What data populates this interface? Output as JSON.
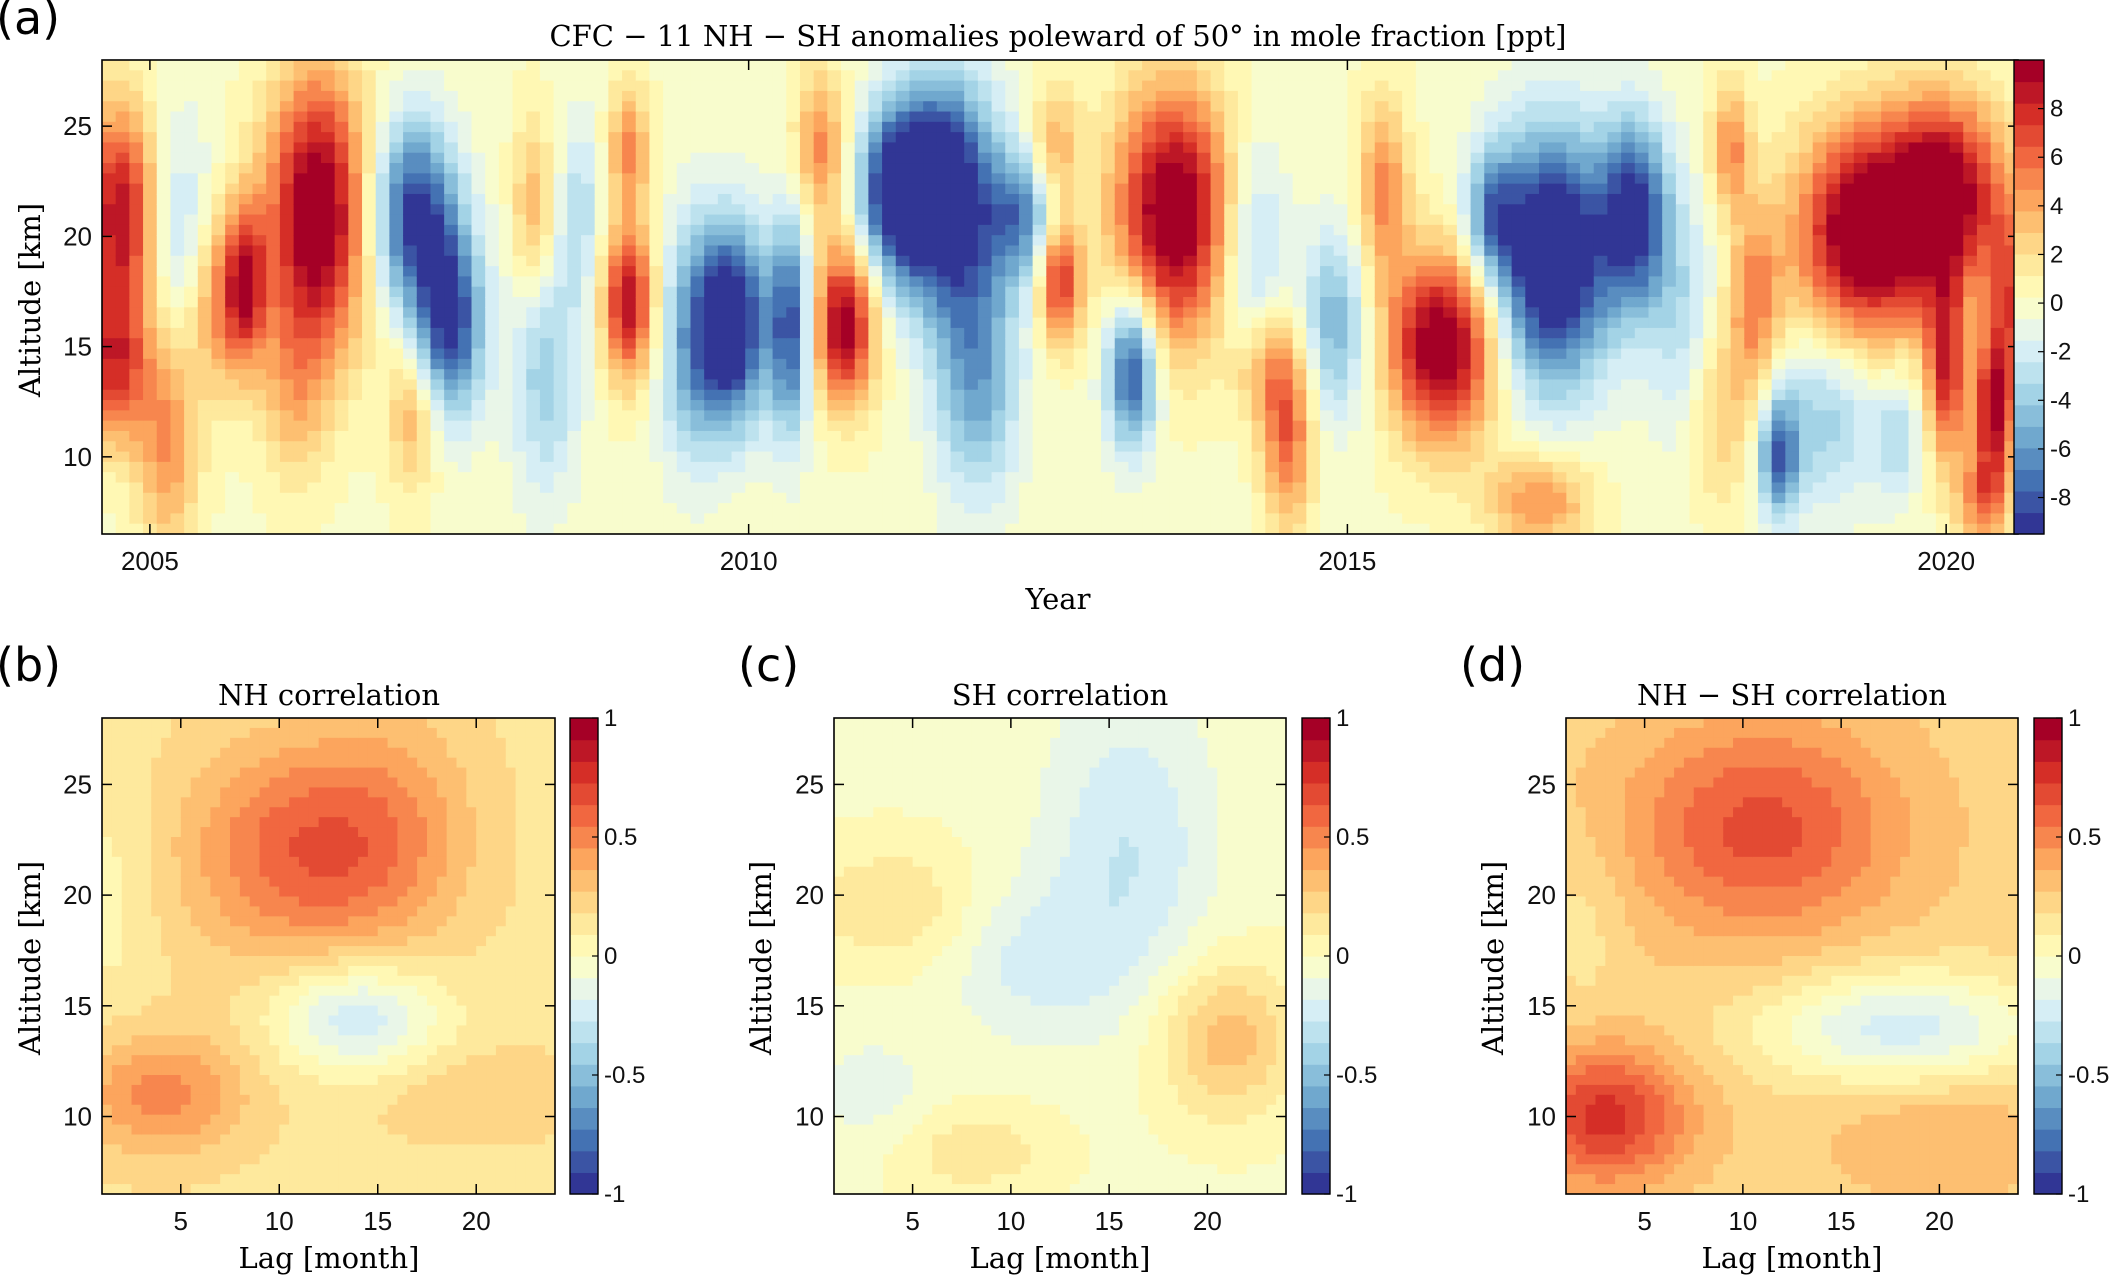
{
  "panel_letters": [
    "(a)",
    "(b)",
    "(c)",
    "(d)"
  ],
  "chart_data": [
    {
      "id": "a",
      "type": "heatmap",
      "title": "CFC − 11 NH − SH anomalies poleward of 50° in mole fraction [ppt]",
      "xlabel": "Year",
      "ylabel": "Altitude [km]",
      "xlim": [
        2004.6,
        2020.6
      ],
      "ylim": [
        6.5,
        28
      ],
      "xticks": [
        2005,
        2010,
        2015,
        2020
      ],
      "xtick_labels": [
        "2005",
        "2010",
        "2015",
        "2020"
      ],
      "yticks": [
        10,
        15,
        20,
        25
      ],
      "ytick_labels": [
        "10",
        "15",
        "20",
        "25"
      ],
      "colorbar": {
        "min": -9.5,
        "max": 10,
        "ticks": [
          -8,
          -6,
          -4,
          -2,
          0,
          2,
          4,
          6,
          8
        ],
        "tick_labels": [
          "-8",
          "-6",
          "-4",
          "-2",
          "0",
          "2",
          "4",
          "6",
          "8"
        ]
      },
      "blobs": [
        {
          "x": 2004.75,
          "y": 21,
          "amp": 9,
          "sx": 0.22,
          "sy": 3.5
        },
        {
          "x": 2004.7,
          "y": 14,
          "amp": 7,
          "sx": 0.2,
          "sy": 2.5
        },
        {
          "x": 2005.15,
          "y": 11,
          "amp": 5,
          "sx": 0.18,
          "sy": 4
        },
        {
          "x": 2005.25,
          "y": 19,
          "amp": -4,
          "sx": 0.2,
          "sy": 4
        },
        {
          "x": 2005.55,
          "y": 17,
          "amp": 5,
          "sx": 0.2,
          "sy": 3
        },
        {
          "x": 2005.8,
          "y": 18,
          "amp": 7,
          "sx": 0.12,
          "sy": 2.5
        },
        {
          "x": 2006.4,
          "y": 21,
          "amp": 11,
          "sx": 0.3,
          "sy": 4.5
        },
        {
          "x": 2006.2,
          "y": 13,
          "amp": 3,
          "sx": 0.2,
          "sy": 3
        },
        {
          "x": 2007.2,
          "y": 21,
          "amp": -9,
          "sx": 0.25,
          "sy": 3
        },
        {
          "x": 2007.5,
          "y": 16,
          "amp": -9,
          "sx": 0.2,
          "sy": 3
        },
        {
          "x": 2007.2,
          "y": 12,
          "amp": 4,
          "sx": 0.15,
          "sy": 2.5
        },
        {
          "x": 2008.2,
          "y": 21,
          "amp": 4,
          "sx": 0.12,
          "sy": 3
        },
        {
          "x": 2008.3,
          "y": 14,
          "amp": -4,
          "sx": 0.2,
          "sy": 4
        },
        {
          "x": 2008.6,
          "y": 21,
          "amp": -3,
          "sx": 0.12,
          "sy": 3
        },
        {
          "x": 2009.0,
          "y": 17,
          "amp": 9,
          "sx": 0.15,
          "sy": 2.5
        },
        {
          "x": 2009.0,
          "y": 24,
          "amp": 5,
          "sx": 0.12,
          "sy": 2
        },
        {
          "x": 2009.5,
          "y": 15,
          "amp": -4,
          "sx": 0.2,
          "sy": 4
        },
        {
          "x": 2009.85,
          "y": 16,
          "amp": -11,
          "sx": 0.22,
          "sy": 3.2
        },
        {
          "x": 2010.35,
          "y": 16,
          "amp": -8,
          "sx": 0.12,
          "sy": 3.5
        },
        {
          "x": 2010.8,
          "y": 16,
          "amp": 10,
          "sx": 0.18,
          "sy": 2.5
        },
        {
          "x": 2010.6,
          "y": 24,
          "amp": 5,
          "sx": 0.15,
          "sy": 2.5
        },
        {
          "x": 2011.2,
          "y": 22,
          "amp": -7,
          "sx": 0.2,
          "sy": 2.5
        },
        {
          "x": 2011.6,
          "y": 22,
          "amp": -12,
          "sx": 0.32,
          "sy": 3.5
        },
        {
          "x": 2011.9,
          "y": 14,
          "amp": -6,
          "sx": 0.25,
          "sy": 4
        },
        {
          "x": 2012.3,
          "y": 21,
          "amp": -6,
          "sx": 0.2,
          "sy": 2
        },
        {
          "x": 2012.6,
          "y": 18,
          "amp": 8,
          "sx": 0.12,
          "sy": 2
        },
        {
          "x": 2012.55,
          "y": 24,
          "amp": 4,
          "sx": 0.15,
          "sy": 2
        },
        {
          "x": 2013.2,
          "y": 14,
          "amp": -9,
          "sx": 0.15,
          "sy": 2.5
        },
        {
          "x": 2013.55,
          "y": 21,
          "amp": 11,
          "sx": 0.35,
          "sy": 4
        },
        {
          "x": 2014.2,
          "y": 19,
          "amp": -4,
          "sx": 0.2,
          "sy": 4
        },
        {
          "x": 2014.5,
          "y": 11,
          "amp": 6,
          "sx": 0.15,
          "sy": 3
        },
        {
          "x": 2014.3,
          "y": 14,
          "amp": 4,
          "sx": 0.2,
          "sy": 2
        },
        {
          "x": 2014.9,
          "y": 16,
          "amp": -5,
          "sx": 0.2,
          "sy": 3
        },
        {
          "x": 2015.3,
          "y": 22,
          "amp": 5,
          "sx": 0.15,
          "sy": 3
        },
        {
          "x": 2015.8,
          "y": 15,
          "amp": 11,
          "sx": 0.32,
          "sy": 3
        },
        {
          "x": 2016.2,
          "y": 21,
          "amp": -5,
          "sx": 0.15,
          "sy": 2
        },
        {
          "x": 2016.7,
          "y": 19,
          "amp": -12,
          "sx": 0.35,
          "sy": 4
        },
        {
          "x": 2016.6,
          "y": 8,
          "amp": 5,
          "sx": 0.3,
          "sy": 1.5
        },
        {
          "x": 2017.4,
          "y": 21,
          "amp": -9,
          "sx": 0.2,
          "sy": 3
        },
        {
          "x": 2017.8,
          "y": 16,
          "amp": -3,
          "sx": 0.2,
          "sy": 4
        },
        {
          "x": 2018.1,
          "y": 12,
          "amp": 3,
          "sx": 0.2,
          "sy": 3
        },
        {
          "x": 2018.4,
          "y": 17,
          "amp": 5,
          "sx": 0.15,
          "sy": 3
        },
        {
          "x": 2018.6,
          "y": 10,
          "amp": -7,
          "sx": 0.12,
          "sy": 2
        },
        {
          "x": 2018.2,
          "y": 24,
          "amp": 5,
          "sx": 0.12,
          "sy": 2
        },
        {
          "x": 2019.0,
          "y": 12,
          "amp": -4,
          "sx": 0.3,
          "sy": 3
        },
        {
          "x": 2019.3,
          "y": 20,
          "amp": 11,
          "sx": 0.4,
          "sy": 3.5
        },
        {
          "x": 2020.0,
          "y": 22,
          "amp": 10,
          "sx": 0.35,
          "sy": 3
        },
        {
          "x": 2020.0,
          "y": 14,
          "amp": 8,
          "sx": 0.12,
          "sy": 3
        },
        {
          "x": 2020.4,
          "y": 12,
          "amp": 9,
          "sx": 0.12,
          "sy": 2.5
        },
        {
          "x": 2020.55,
          "y": 17,
          "amp": 6,
          "sx": 0.15,
          "sy": 3
        },
        {
          "x": 2019.6,
          "y": 11,
          "amp": -3,
          "sx": 0.15,
          "sy": 2
        },
        {
          "x": 2020.3,
          "y": 8,
          "amp": 5,
          "sx": 0.15,
          "sy": 1.5
        }
      ]
    },
    {
      "id": "b",
      "type": "heatmap",
      "title": "NH correlation",
      "xlabel": "Lag [month]",
      "ylabel": "Altitude [km]",
      "xlim": [
        1,
        24
      ],
      "ylim": [
        6.5,
        28
      ],
      "xticks": [
        5,
        10,
        15,
        20
      ],
      "xtick_labels": [
        "5",
        "10",
        "15",
        "20"
      ],
      "yticks": [
        10,
        15,
        20,
        25
      ],
      "ytick_labels": [
        "10",
        "15",
        "20",
        "25"
      ],
      "colorbar": {
        "min": -1,
        "max": 1,
        "ticks": [
          -1,
          -0.5,
          0,
          0.5,
          1
        ],
        "tick_labels": [
          "-1",
          "-0.5",
          "0",
          "0.5",
          "1"
        ]
      },
      "base": 0.15,
      "blobs": [
        {
          "x": 11,
          "y": 22,
          "amp": 0.45,
          "sx": 4,
          "sy": 3.5
        },
        {
          "x": 16,
          "y": 23,
          "amp": 0.2,
          "sx": 3,
          "sy": 4
        },
        {
          "x": 4,
          "y": 11,
          "amp": 0.35,
          "sx": 3,
          "sy": 2
        },
        {
          "x": 14,
          "y": 14.5,
          "amp": -0.42,
          "sx": 3,
          "sy": 1.8
        },
        {
          "x": 20,
          "y": 11,
          "amp": 0.12,
          "sx": 4,
          "sy": 1.5
        },
        {
          "x": 1.5,
          "y": 20,
          "amp": -0.1,
          "sx": 1.5,
          "sy": 4
        }
      ]
    },
    {
      "id": "c",
      "type": "heatmap",
      "title": "SH correlation",
      "xlabel": "Lag [month]",
      "ylabel": "Altitude [km]",
      "xlim": [
        1,
        24
      ],
      "ylim": [
        6.5,
        28
      ],
      "xticks": [
        5,
        10,
        15,
        20
      ],
      "xtick_labels": [
        "5",
        "10",
        "15",
        "20"
      ],
      "yticks": [
        10,
        15,
        20,
        25
      ],
      "ytick_labels": [
        "10",
        "15",
        "20",
        "25"
      ],
      "colorbar": {
        "min": -1,
        "max": 1,
        "ticks": [
          -1,
          -0.5,
          0,
          0.5,
          1
        ],
        "tick_labels": [
          "-1",
          "-0.5",
          "0",
          "0.5",
          "1"
        ]
      },
      "base": -0.02,
      "blobs": [
        {
          "x": 16,
          "y": 22,
          "amp": -0.25,
          "sx": 3,
          "sy": 5
        },
        {
          "x": 11,
          "y": 17,
          "amp": -0.18,
          "sx": 3,
          "sy": 2.5
        },
        {
          "x": 21,
          "y": 13.5,
          "amp": 0.35,
          "sx": 2.5,
          "sy": 2.5
        },
        {
          "x": 4,
          "y": 19.5,
          "amp": 0.2,
          "sx": 3,
          "sy": 2
        },
        {
          "x": 8,
          "y": 8.5,
          "amp": 0.18,
          "sx": 3,
          "sy": 1.5
        },
        {
          "x": 3,
          "y": 11,
          "amp": -0.12,
          "sx": 2.5,
          "sy": 2
        }
      ]
    },
    {
      "id": "d",
      "type": "heatmap",
      "title": "NH − SH correlation",
      "xlabel": "Lag [month]",
      "ylabel": "Altitude [km]",
      "xlim": [
        1,
        24
      ],
      "ylim": [
        6.5,
        28
      ],
      "xticks": [
        5,
        10,
        15,
        20
      ],
      "xtick_labels": [
        "5",
        "10",
        "15",
        "20"
      ],
      "yticks": [
        10,
        15,
        20,
        25
      ],
      "ytick_labels": [
        "10",
        "15",
        "20",
        "25"
      ],
      "colorbar": {
        "min": -1,
        "max": 1,
        "ticks": [
          -1,
          -0.5,
          0,
          0.5,
          1
        ],
        "tick_labels": [
          "-1",
          "-0.5",
          "0",
          "0.5",
          "1"
        ]
      },
      "base": 0.22,
      "blobs": [
        {
          "x": 11,
          "y": 23,
          "amp": 0.45,
          "sx": 5,
          "sy": 3.5
        },
        {
          "x": 3,
          "y": 10,
          "amp": 0.55,
          "sx": 3,
          "sy": 2.2
        },
        {
          "x": 18,
          "y": 14,
          "amp": -0.45,
          "sx": 5,
          "sy": 1.8
        },
        {
          "x": 2,
          "y": 19,
          "amp": -0.1,
          "sx": 1.5,
          "sy": 3
        },
        {
          "x": 20,
          "y": 9,
          "amp": 0.15,
          "sx": 4,
          "sy": 2
        }
      ]
    }
  ]
}
